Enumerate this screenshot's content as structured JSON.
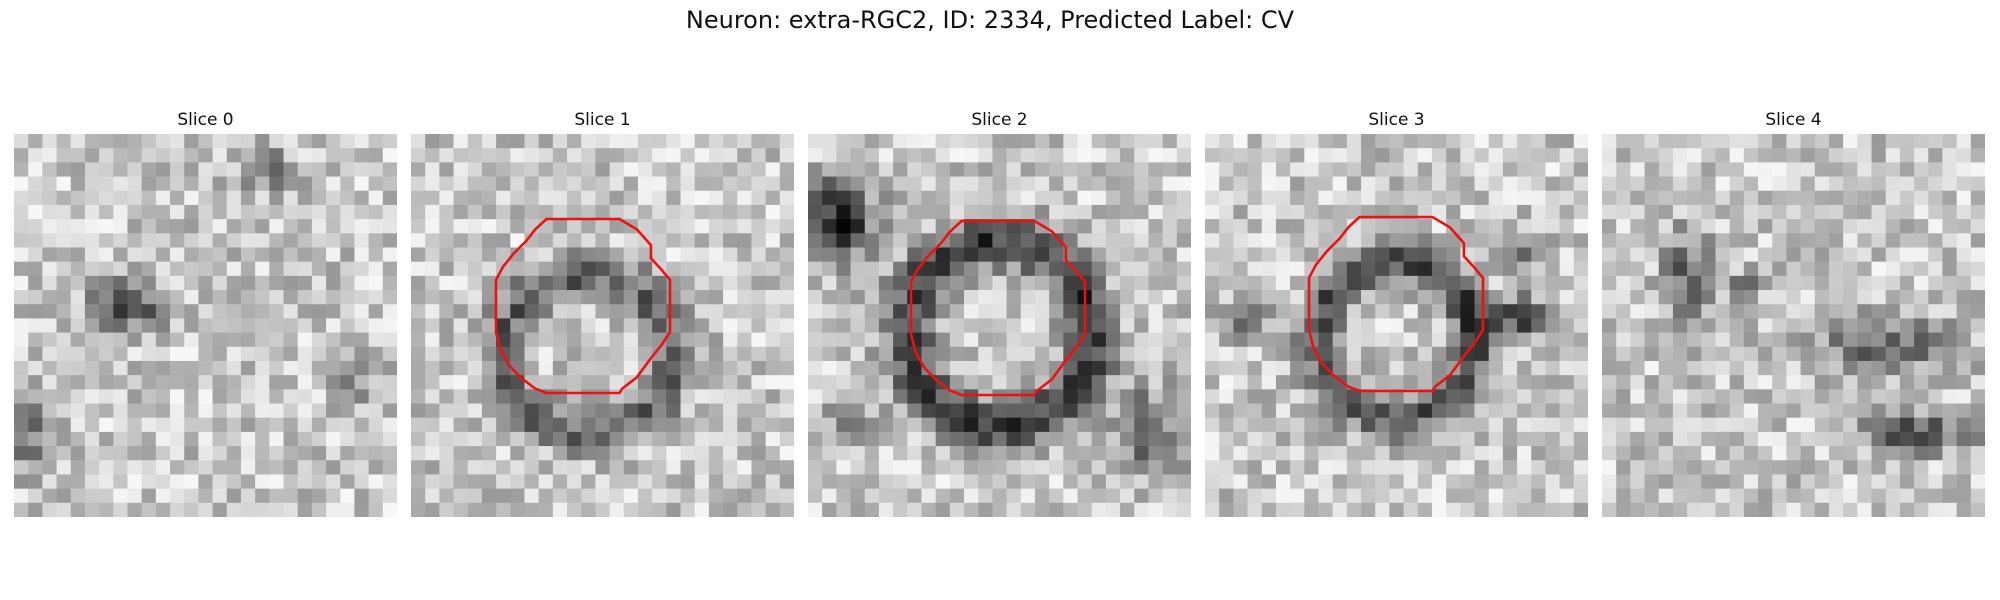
{
  "figure": {
    "title": "Neuron: extra-RGC2, ID: 2334, Predicted Label: CV"
  },
  "colors": {
    "contour": "#ee1111"
  },
  "panels": [
    {
      "title": "Slice 0",
      "has_contour": false
    },
    {
      "title": "Slice 1",
      "has_contour": true
    },
    {
      "title": "Slice 2",
      "has_contour": true
    },
    {
      "title": "Slice 3",
      "has_contour": true
    },
    {
      "title": "Slice 4",
      "has_contour": false
    }
  ]
}
